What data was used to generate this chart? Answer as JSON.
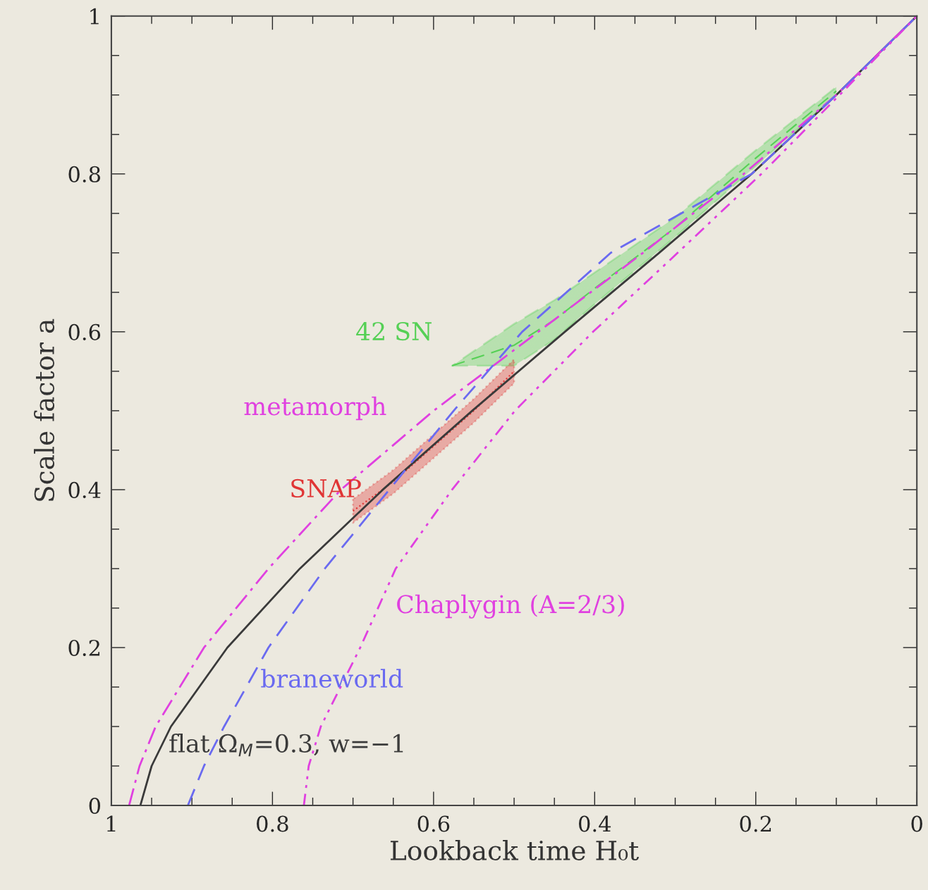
{
  "chart_data": {
    "type": "line",
    "xlabel": "Lookback time H₀t",
    "ylabel": "Scale factor a",
    "xlim": [
      1,
      0
    ],
    "ylim": [
      0,
      1
    ],
    "xticks": [
      1,
      0.8,
      0.6,
      0.4,
      0.2,
      0
    ],
    "yticks": [
      0,
      0.2,
      0.4,
      0.6,
      0.8,
      1
    ],
    "grid": false,
    "legend": false,
    "series": [
      {
        "name": "42 SN",
        "color": "#55d055",
        "line_style": "dashed",
        "x": [
          0.577,
          0.5,
          0.45,
          0.4,
          0.3,
          0.2,
          0.1
        ],
        "values": [
          0.557,
          0.583,
          0.615,
          0.655,
          0.732,
          0.82,
          0.905
        ],
        "upper": [
          0.557,
          0.61,
          0.64,
          0.675,
          0.745,
          0.83,
          0.91
        ],
        "lower": [
          0.557,
          0.557,
          0.59,
          0.635,
          0.72,
          0.81,
          0.9
        ]
      },
      {
        "name": "SNAP",
        "color": "#e03535",
        "line_style": "dotted",
        "x": [
          0.7,
          0.65,
          0.6,
          0.55,
          0.5
        ],
        "values": [
          0.373,
          0.41,
          0.455,
          0.5,
          0.55
        ],
        "upper": [
          0.388,
          0.425,
          0.47,
          0.515,
          0.565
        ],
        "lower": [
          0.358,
          0.395,
          0.44,
          0.485,
          0.535
        ]
      },
      {
        "name": "flat Ω$_{M}$=0.3, w=−1",
        "color": "#3a3a3a",
        "line_style": "solid",
        "x": [
          0.964,
          0.95,
          0.926,
          0.856,
          0.766,
          0.663,
          0.552,
          0.437,
          0.32,
          0.205,
          0.1,
          0
        ],
        "values": [
          0,
          0.05,
          0.1,
          0.2,
          0.3,
          0.4,
          0.5,
          0.6,
          0.7,
          0.8,
          0.9,
          1
        ]
      },
      {
        "name": "metamorph",
        "color": "#e040e0",
        "line_style": "dashdot",
        "x": [
          0.978,
          0.965,
          0.945,
          0.885,
          0.805,
          0.715,
          0.6,
          0.47,
          0.34,
          0.215,
          0.1,
          0
        ],
        "values": [
          0,
          0.05,
          0.1,
          0.2,
          0.3,
          0.4,
          0.5,
          0.6,
          0.7,
          0.8,
          0.9,
          1
        ]
      },
      {
        "name": "braneworld",
        "color": "#6a6af0",
        "line_style": "dashed",
        "x": [
          0.905,
          0.885,
          0.86,
          0.805,
          0.735,
          0.655,
          0.575,
          0.49,
          0.38,
          0.205,
          0.1,
          0
        ],
        "values": [
          0,
          0.05,
          0.1,
          0.2,
          0.3,
          0.4,
          0.5,
          0.6,
          0.7,
          0.8,
          0.9,
          1
        ]
      },
      {
        "name": "Chaplygin (A=2/3)",
        "color": "#e040e0",
        "line_style": "dashdotdot",
        "x": [
          0.761,
          0.755,
          0.74,
          0.691,
          0.647,
          0.577,
          0.499,
          0.402,
          0.297,
          0.193,
          0.096,
          0
        ],
        "values": [
          0,
          0.05,
          0.1,
          0.2,
          0.3,
          0.4,
          0.5,
          0.6,
          0.7,
          0.8,
          0.9,
          1
        ]
      }
    ]
  }
}
